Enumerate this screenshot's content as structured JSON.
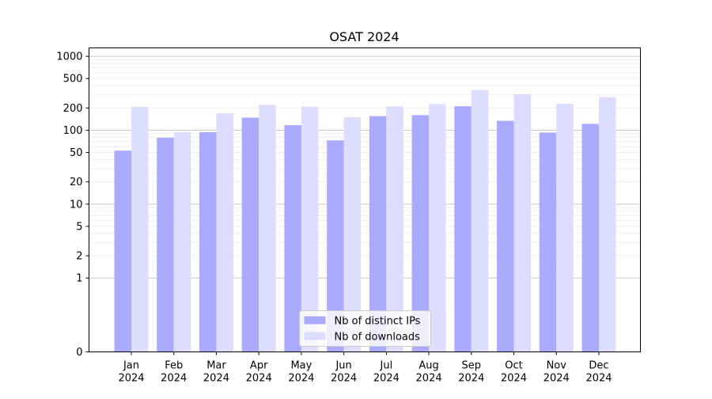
{
  "chart_data": {
    "type": "bar",
    "title": "OSAT 2024",
    "categories": [
      "Jan\n2024",
      "Feb\n2024",
      "Mar\n2024",
      "Apr\n2024",
      "May\n2024",
      "Jun\n2024",
      "Jul\n2024",
      "Aug\n2024",
      "Sep\n2024",
      "Oct\n2024",
      "Nov\n2024",
      "Dec\n2024"
    ],
    "yscale": "symlog",
    "ylim": [
      0,
      1300
    ],
    "yticks": [
      0,
      1,
      2,
      5,
      10,
      20,
      50,
      100,
      200,
      500,
      1000
    ],
    "ytick_labels": [
      "0",
      "1",
      "2",
      "5",
      "10",
      "20",
      "50",
      "100",
      "200",
      "500",
      "1000"
    ],
    "grid": "horizontal",
    "legend_position": "bottom-center",
    "series": [
      {
        "name": "Nb of distinct IPs",
        "color": "#aaaaff",
        "values": [
          53,
          79,
          94,
          148,
          117,
          73,
          155,
          160,
          211,
          134,
          93,
          122
        ]
      },
      {
        "name": "Nb of downloads",
        "color": "#ddddff",
        "values": [
          207,
          94,
          170,
          220,
          208,
          150,
          210,
          226,
          350,
          307,
          228,
          280
        ]
      }
    ]
  }
}
